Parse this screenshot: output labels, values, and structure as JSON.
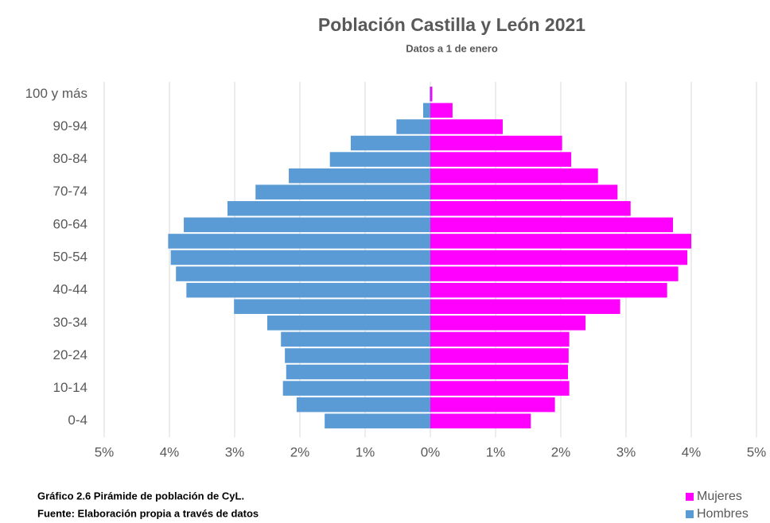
{
  "chart_data": {
    "type": "pyramid",
    "title": "Población Castilla y León 2021",
    "subtitle": "Datos a 1 de enero",
    "categories": [
      "0-4",
      null,
      "10-14",
      null,
      "20-24",
      null,
      "30-34",
      null,
      "40-44",
      null,
      "50-54",
      null,
      "60-64",
      null,
      "70-74",
      null,
      "80-84",
      null,
      "90-94",
      null,
      "100 y más"
    ],
    "series": [
      {
        "name": "Mujeres",
        "color": "#ff00ff",
        "values": [
          1.54,
          1.91,
          2.13,
          2.11,
          2.12,
          2.13,
          2.38,
          2.91,
          3.63,
          3.8,
          3.94,
          4.0,
          3.72,
          3.07,
          2.87,
          2.57,
          2.16,
          2.02,
          1.11,
          0.34,
          0.03
        ]
      },
      {
        "name": "Hombres",
        "color": "#5b9bd5",
        "values": [
          -1.62,
          -2.05,
          -2.26,
          -2.21,
          -2.23,
          -2.29,
          -2.5,
          -3.01,
          -3.74,
          -3.9,
          -3.98,
          -4.02,
          -3.78,
          -3.11,
          -2.68,
          -2.17,
          -1.54,
          -1.22,
          -0.52,
          -0.11,
          -0.01
        ]
      }
    ],
    "xlim": [
      -5,
      5
    ],
    "xticks": [
      {
        "value": -5,
        "label": "5%"
      },
      {
        "value": -4,
        "label": "4%"
      },
      {
        "value": -3,
        "label": "3%"
      },
      {
        "value": -2,
        "label": "2%"
      },
      {
        "value": -1,
        "label": "1%"
      },
      {
        "value": 0,
        "label": "0%"
      },
      {
        "value": 1,
        "label": "1%"
      },
      {
        "value": 2,
        "label": "2%"
      },
      {
        "value": 3,
        "label": "3%"
      },
      {
        "value": 4,
        "label": "4%"
      },
      {
        "value": 5,
        "label": "5%"
      }
    ],
    "grid": true,
    "caption": [
      "Gráfico 2.6 Pirámide de población de CyL.",
      "Fuente: Elaboración propia a través de datos"
    ]
  }
}
